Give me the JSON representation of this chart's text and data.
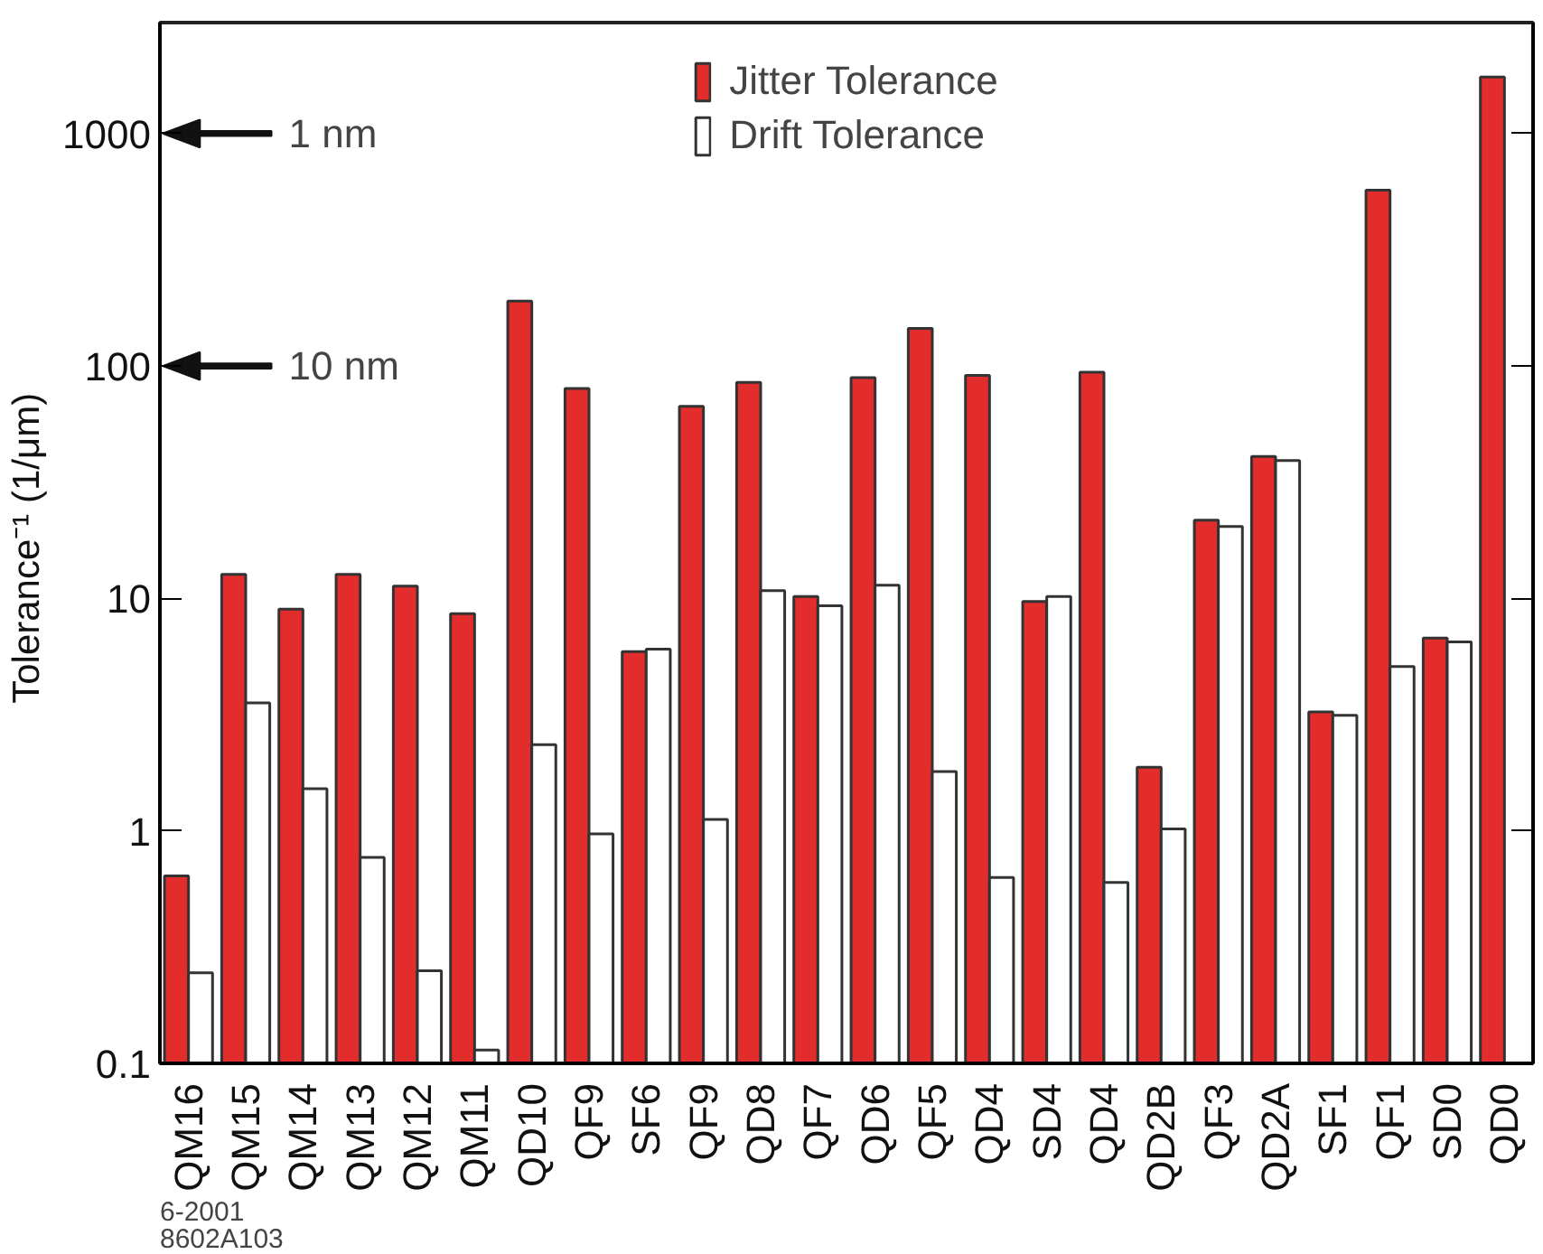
{
  "chart_data": {
    "type": "bar",
    "ylabel": "Tolerance⁻¹  (1/μm)",
    "categories": [
      "QM16",
      "QM15",
      "QM14",
      "QM13",
      "QM12",
      "QM11",
      "QD10",
      "QF9",
      "SF6",
      "QF9",
      "QD8",
      "QF7",
      "QD6",
      "QF5",
      "QD4",
      "SD4",
      "QD4",
      "QD2B",
      "QF3",
      "QD2A",
      "SF1",
      "QF1",
      "SD0",
      "QD0"
    ],
    "series": [
      {
        "name": "Jitter Tolerance",
        "color": "#e32d2d",
        "values": [
          0.64,
          12.7,
          9.0,
          12.7,
          11.3,
          8.6,
          190,
          80,
          5.9,
          67,
          85,
          10.2,
          89,
          145,
          91,
          9.7,
          94,
          1.88,
          21.7,
          40.8,
          3.25,
          571,
          6.75,
          1750
        ]
      },
      {
        "name": "Drift Tolerance",
        "color": "#ffffff",
        "values": [
          0.245,
          3.55,
          1.52,
          0.77,
          0.25,
          0.114,
          2.35,
          0.97,
          6.05,
          1.12,
          10.8,
          9.3,
          11.4,
          1.8,
          0.63,
          10.2,
          0.6,
          1.02,
          20.4,
          39.2,
          3.14,
          5.1,
          6.5,
          null
        ]
      }
    ],
    "log": true,
    "ylim": [
      0.1,
      3000
    ],
    "yticks": [
      0.1,
      1,
      10,
      100,
      1000
    ],
    "legend": "top",
    "grid": false,
    "ref_lines": [
      {
        "axis": "y",
        "value": 1000,
        "label": "1 nm",
        "color": "#111111"
      },
      {
        "axis": "y",
        "value": 100,
        "label": "10 nm",
        "color": "#111111"
      }
    ],
    "annotations": [
      "6-2001",
      "8602A103"
    ]
  }
}
